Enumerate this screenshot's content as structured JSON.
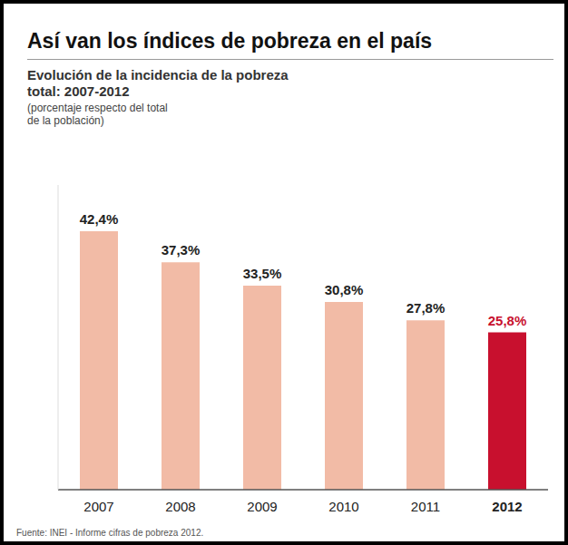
{
  "chart_data": {
    "type": "bar",
    "title": "Así van los índices de pobreza en el país",
    "subtitle": "Evolución de la incidencia de la pobreza total: 2007-2012",
    "annotations": [
      "(porcentaje respecto del total de la población)",
      "Fuente: INEI - Informe cifras de pobreza 2012."
    ],
    "categories": [
      "2007",
      "2008",
      "2009",
      "2010",
      "2011",
      "2012"
    ],
    "values": [
      42.4,
      37.3,
      33.5,
      30.8,
      27.8,
      25.8
    ],
    "value_labels": [
      "42,4%",
      "37,3%",
      "33,5%",
      "30,8%",
      "27,8%",
      "25,8%"
    ],
    "colors": [
      "#f2bba6",
      "#f2bba6",
      "#f2bba6",
      "#f2bba6",
      "#f2bba6",
      "#c8102e"
    ],
    "ylim": [
      0,
      50
    ],
    "data_labels": true,
    "tick_labels": "x",
    "grid": false
  }
}
